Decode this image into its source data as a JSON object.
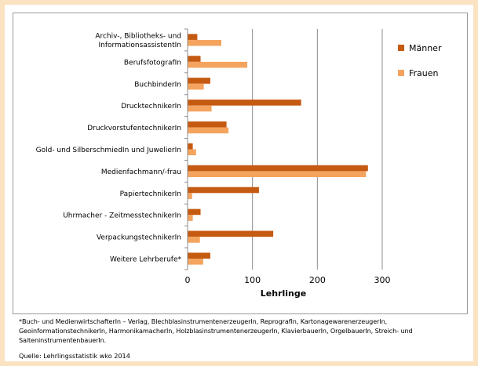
{
  "chart_data": {
    "type": "bar",
    "orientation": "horizontal",
    "categories": [
      [
        "Archiv-, Bibliotheks- und",
        "InformationsassistentIn"
      ],
      [
        "BerufsfotografIn"
      ],
      [
        "BuchbinderIn"
      ],
      [
        "DrucktechnikerIn"
      ],
      [
        "DruckvorstufentechnikerIn"
      ],
      [
        "Gold- und SilberschmiedIn und JuwelierIn"
      ],
      [
        "Medienfachmann/-frau"
      ],
      [
        "PapiertechnikerIn"
      ],
      [
        "Uhrmacher - ZeitmesstechnikerIn"
      ],
      [
        "VerpackungstechnikerIn"
      ],
      [
        "Weitere Lehrberufe*"
      ]
    ],
    "series": [
      {
        "name": "Männer",
        "color": "#c55a11",
        "values": [
          15,
          20,
          35,
          175,
          60,
          8,
          278,
          110,
          20,
          132,
          35
        ]
      },
      {
        "name": "Frauen",
        "color": "#f4a45f",
        "values": [
          52,
          92,
          25,
          37,
          63,
          13,
          275,
          7,
          8,
          19,
          24
        ]
      }
    ],
    "xlabel": "Lehrlinge",
    "xlim": [
      0,
      300
    ],
    "xticks": [
      "0",
      "100",
      "200",
      "300"
    ],
    "xtick_values": [
      0,
      100,
      200,
      300
    ],
    "grid": true,
    "legend_position": "right"
  },
  "footnote": "*Buch- und MedienwirtschafterIn – Verlag, BlechblasinstrumentenerzeugerIn, ReprografIn, KartonagewarenerzeugerIn, GeoinformationstechnikerIn, HarmonikamacherIn, HolzblasinstrumentenerzeugerIn, KlavierbauerIn, OrgelbauerIn, Streich- und SaiteninstrumentenbauerIn.",
  "source": "Quelle: Lehrlingsstatistik wko 2014"
}
